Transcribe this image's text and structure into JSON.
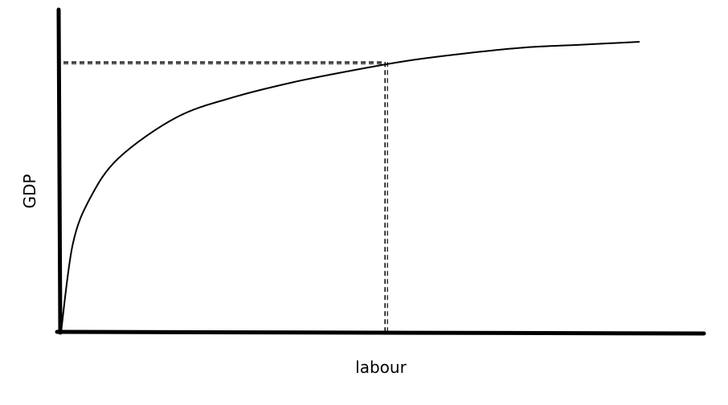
{
  "chart_data": {
    "type": "line",
    "title": "",
    "xlabel": "labour",
    "ylabel": "GDP",
    "x_ticks": [],
    "y_ticks": [],
    "grid": false,
    "legend": "none",
    "series": [
      {
        "curve": "concave-increasing",
        "x": [
          0,
          0.02,
          0.05,
          0.1,
          0.2,
          0.3,
          0.4,
          0.5,
          0.6,
          0.7,
          0.8,
          0.9,
          1.0
        ],
        "y": [
          0,
          0.3,
          0.46,
          0.6,
          0.74,
          0.81,
          0.86,
          0.9,
          0.935,
          0.96,
          0.98,
          0.99,
          1.0
        ],
        "color": "#000000"
      }
    ],
    "reference_point": {
      "x": 0.56,
      "y": 0.93,
      "guide_lines": "dashed"
    }
  }
}
